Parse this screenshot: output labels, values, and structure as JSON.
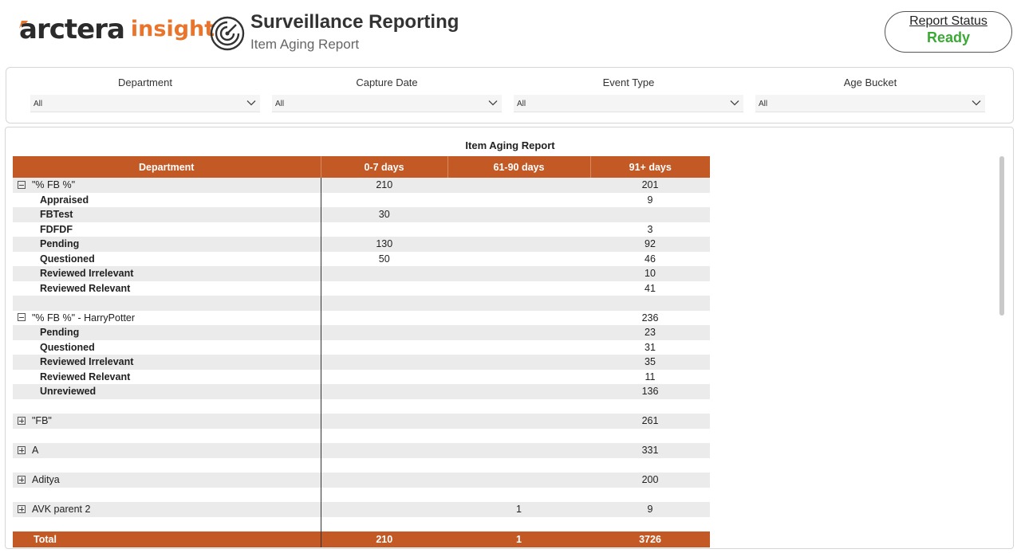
{
  "header": {
    "logo_primary": "arctera",
    "logo_secondary": "insight",
    "title": "Surveillance Reporting",
    "subtitle": "Item Aging Report",
    "status_label": "Report Status",
    "status_value": "Ready",
    "colors": {
      "brand_orange": "#e9742b",
      "ready_green": "#3aa935"
    }
  },
  "filters": [
    {
      "label": "Department",
      "value": "All"
    },
    {
      "label": "Capture Date",
      "value": "All"
    },
    {
      "label": "Event Type",
      "value": "All"
    },
    {
      "label": "Age Bucket",
      "value": "All"
    }
  ],
  "report": {
    "title": "Item Aging Report",
    "header_color": "#c35a26",
    "columns": [
      "Department",
      "0-7 days",
      "61-90 days",
      "91+ days"
    ],
    "rows": [
      {
        "type": "parent",
        "expanded": true,
        "label": "\"% FB %\"",
        "c1": "210",
        "c2": "",
        "c3": "201",
        "shade": true
      },
      {
        "type": "child",
        "label": "Appraised",
        "c1": "",
        "c2": "",
        "c3": "9",
        "shade": false
      },
      {
        "type": "child",
        "label": "FBTest",
        "c1": "30",
        "c2": "",
        "c3": "",
        "shade": true
      },
      {
        "type": "child",
        "label": "FDFDF",
        "c1": "",
        "c2": "",
        "c3": "3",
        "shade": false
      },
      {
        "type": "child",
        "label": "Pending",
        "c1": "130",
        "c2": "",
        "c3": "92",
        "shade": true
      },
      {
        "type": "child",
        "label": "Questioned",
        "c1": "50",
        "c2": "",
        "c3": "46",
        "shade": false
      },
      {
        "type": "child",
        "label": "Reviewed Irrelevant",
        "c1": "",
        "c2": "",
        "c3": "10",
        "shade": true
      },
      {
        "type": "child",
        "label": "Reviewed Relevant",
        "c1": "",
        "c2": "",
        "c3": "41",
        "shade": false
      },
      {
        "type": "spacer",
        "shade": true
      },
      {
        "type": "parent",
        "expanded": true,
        "label": "\"% FB %\" - HarryPotter",
        "c1": "",
        "c2": "",
        "c3": "236",
        "shade": false
      },
      {
        "type": "child",
        "label": "Pending",
        "c1": "",
        "c2": "",
        "c3": "23",
        "shade": true
      },
      {
        "type": "child",
        "label": "Questioned",
        "c1": "",
        "c2": "",
        "c3": "31",
        "shade": false
      },
      {
        "type": "child",
        "label": "Reviewed Irrelevant",
        "c1": "",
        "c2": "",
        "c3": "35",
        "shade": true
      },
      {
        "type": "child",
        "label": "Reviewed Relevant",
        "c1": "",
        "c2": "",
        "c3": "11",
        "shade": false
      },
      {
        "type": "child",
        "label": "Unreviewed",
        "c1": "",
        "c2": "",
        "c3": "136",
        "shade": true
      },
      {
        "type": "spacer",
        "shade": false
      },
      {
        "type": "parent",
        "expanded": false,
        "label": "\"FB\"",
        "c1": "",
        "c2": "",
        "c3": "261",
        "shade": true
      },
      {
        "type": "spacer",
        "shade": false
      },
      {
        "type": "parent",
        "expanded": false,
        "label": "A",
        "c1": "",
        "c2": "",
        "c3": "331",
        "shade": true
      },
      {
        "type": "spacer",
        "shade": false
      },
      {
        "type": "parent",
        "expanded": false,
        "label": "Aditya",
        "c1": "",
        "c2": "",
        "c3": "200",
        "shade": true
      },
      {
        "type": "spacer",
        "shade": false
      },
      {
        "type": "parent",
        "expanded": false,
        "label": "AVK parent 2",
        "c1": "",
        "c2": "1",
        "c3": "9",
        "shade": true
      },
      {
        "type": "spacer",
        "shade": false
      }
    ],
    "total": {
      "label": "Total",
      "c1": "210",
      "c2": "1",
      "c3": "3726"
    }
  }
}
